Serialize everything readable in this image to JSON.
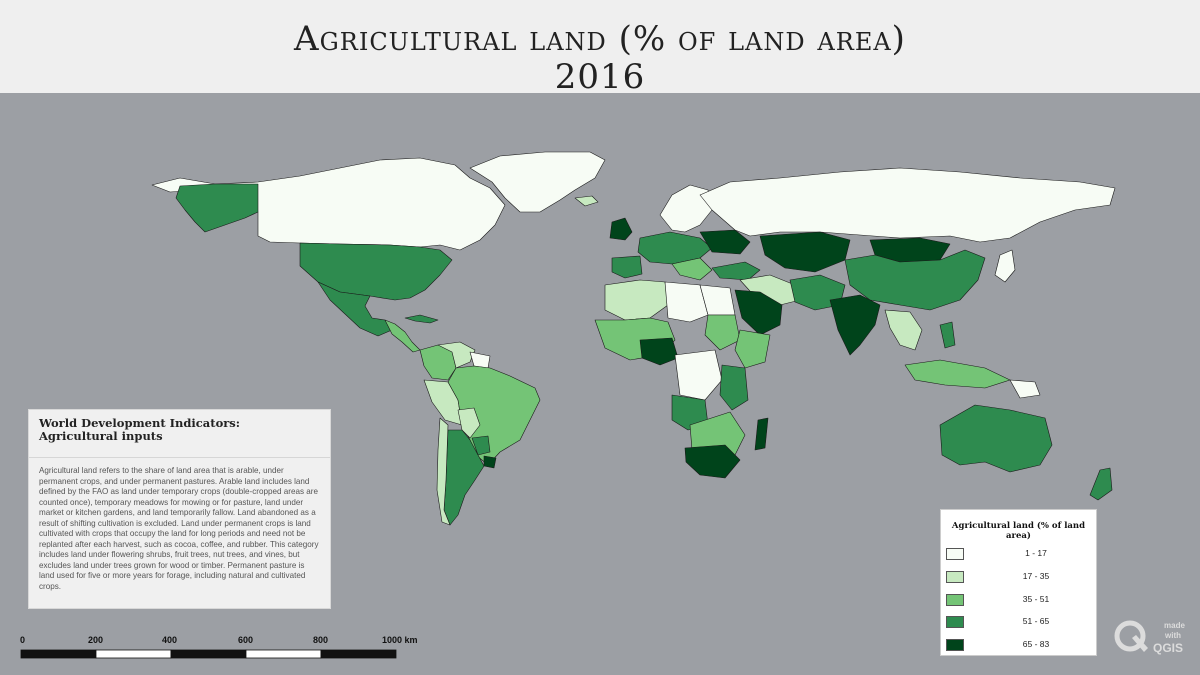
{
  "title": {
    "line1": "Agricultural land (% of land area)",
    "line2": "2016"
  },
  "info_box": {
    "heading": "World Development Indicators: Agricultural inputs",
    "body": "Agricultural land refers to the share of land area that is arable, under permanent crops, and under permanent pastures. Arable land includes land defined by the FAO as land under temporary crops (double-cropped areas are counted once), temporary meadows for mowing or for pasture, land under market or kitchen gardens, and land temporarily fallow. Land abandoned as a result of shifting cultivation is excluded. Land under permanent crops is land cultivated with crops that occupy the land for long periods and need not be replanted after each harvest, such as cocoa, coffee, and rubber. This category includes land under flowering shrubs, fruit trees, nut trees, and vines, but excludes land under trees grown for wood or timber. Permanent pasture is land used for five or more years for forage, including natural and cultivated crops."
  },
  "legend": {
    "title": "Agricultural land (% of land area)",
    "classes": [
      {
        "label": "1 - 17",
        "color": "#f7fcf5"
      },
      {
        "label": "17 - 35",
        "color": "#c7e9c0"
      },
      {
        "label": "35 - 51",
        "color": "#74c476"
      },
      {
        "label": "51 - 65",
        "color": "#2e8b4f"
      },
      {
        "label": "65 - 83",
        "color": "#00441b"
      }
    ]
  },
  "scale_bar": {
    "labels": [
      "0",
      "200",
      "400",
      "600",
      "800",
      "1000 km"
    ]
  },
  "logo": {
    "icon": "qgis-logo-icon",
    "text_made": "made",
    "text_with": "with",
    "text_qgis": "QGIS"
  },
  "colors": {
    "ocean": "#9c9fa4",
    "panel": "#efefef",
    "border": "#222222"
  }
}
